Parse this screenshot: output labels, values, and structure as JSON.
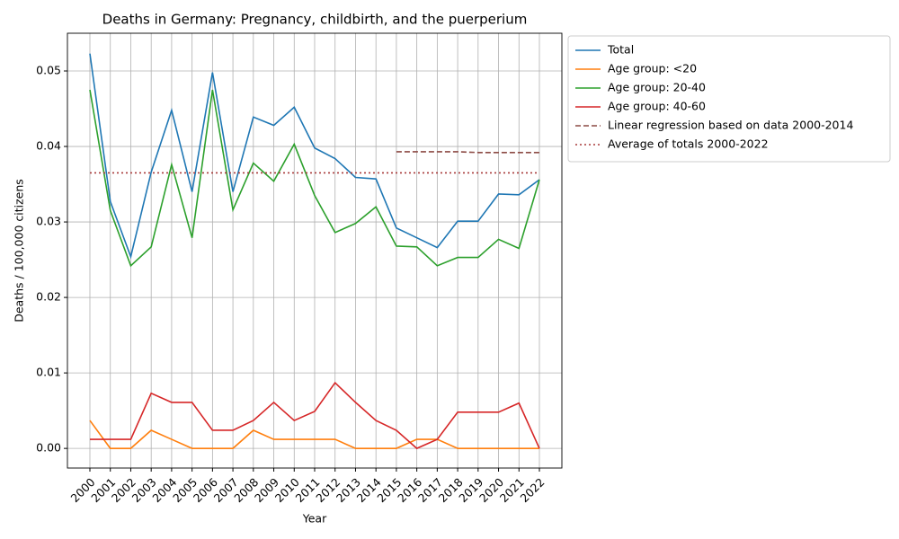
{
  "chart_data": {
    "type": "line",
    "title": "Deaths in Germany: Pregnancy, childbirth, and the puerperium",
    "x_label": "Year",
    "y_label": "Deaths / 100,000 citizens",
    "x": [
      2000,
      2001,
      2002,
      2003,
      2004,
      2005,
      2006,
      2007,
      2008,
      2009,
      2010,
      2011,
      2012,
      2013,
      2014,
      2015,
      2016,
      2017,
      2018,
      2019,
      2020,
      2021,
      2022
    ],
    "xlim": [
      1998.9,
      2023.1
    ],
    "xticks": [
      2000,
      2001,
      2002,
      2003,
      2004,
      2005,
      2006,
      2007,
      2008,
      2009,
      2010,
      2011,
      2012,
      2013,
      2014,
      2015,
      2016,
      2017,
      2018,
      2019,
      2020,
      2021,
      2022
    ],
    "ylim": [
      -0.0026,
      0.055
    ],
    "yticks": [
      {
        "value": 0,
        "label": "0.00"
      },
      0.01,
      0.02,
      0.03,
      0.04,
      0.05
    ],
    "grid": true,
    "legend": "outside upper left",
    "series": [
      {
        "name": "Total",
        "color": "#1f77b4",
        "linestyle": "solid",
        "values": [
          0.0523,
          0.0327,
          0.0254,
          0.0366,
          0.0448,
          0.034,
          0.0498,
          0.034,
          0.0439,
          0.0428,
          0.0452,
          0.0398,
          0.0384,
          0.0359,
          0.0357,
          0.0292,
          0.0279,
          0.0266,
          0.0301,
          0.0301,
          0.0337,
          0.0336,
          0.0356
        ]
      },
      {
        "name": "Age group: <20",
        "color": "#ff7f0e",
        "linestyle": "solid",
        "values": [
          0.0037,
          0,
          0,
          0.0024,
          0.0012,
          0,
          0,
          0,
          0.0024,
          0.0012,
          0.0012,
          0.0012,
          0.0012,
          0,
          0,
          0,
          0.0012,
          0.0012,
          0,
          0,
          0,
          0,
          0
        ]
      },
      {
        "name": "Age group: 20-40",
        "color": "#2ca02c",
        "linestyle": "solid",
        "values": [
          0.0475,
          0.0315,
          0.0242,
          0.0267,
          0.0376,
          0.0279,
          0.0475,
          0.0316,
          0.0378,
          0.0354,
          0.0403,
          0.0335,
          0.0286,
          0.0298,
          0.032,
          0.0268,
          0.0267,
          0.0242,
          0.0253,
          0.0253,
          0.0277,
          0.0265,
          0.0356
        ]
      },
      {
        "name": "Age group: 40-60",
        "color": "#d62728",
        "linestyle": "solid",
        "values": [
          0.0012,
          0.0012,
          0.0012,
          0.0073,
          0.0061,
          0.0061,
          0.0024,
          0.0024,
          0.0037,
          0.0061,
          0.0037,
          0.0049,
          0.0087,
          0.0061,
          0.0037,
          0.0024,
          0,
          0.0012,
          0.0048,
          0.0048,
          0.0048,
          0.006,
          0
        ]
      },
      {
        "name": "Linear regression based on data 2000-2014",
        "color": "#8c4a44",
        "linestyle": "dashed",
        "values": [
          null,
          null,
          null,
          null,
          null,
          null,
          null,
          null,
          null,
          null,
          null,
          null,
          null,
          null,
          null,
          0.0393,
          0.0393,
          0.0393,
          0.0393,
          0.0392,
          0.0392,
          0.0392,
          0.0392
        ]
      },
      {
        "name": "Average of totals 2000-2022",
        "color": "#a83a3a",
        "linestyle": "dotted",
        "values": [
          0.0365,
          0.0365,
          0.0365,
          0.0365,
          0.0365,
          0.0365,
          0.0365,
          0.0365,
          0.0365,
          0.0365,
          0.0365,
          0.0365,
          0.0365,
          0.0365,
          0.0365,
          0.0365,
          0.0365,
          0.0365,
          0.0365,
          0.0365,
          0.0365,
          0.0365,
          0.0365
        ]
      }
    ]
  }
}
